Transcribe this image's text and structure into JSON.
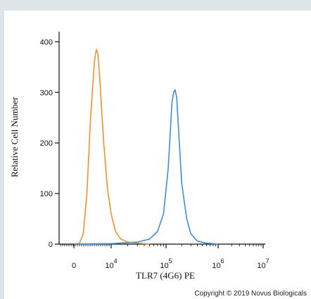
{
  "chart_data": {
    "type": "line",
    "title": "",
    "xlabel": "TLR7 (4G6) PE",
    "ylabel": "Relative Cell Number",
    "x_scale": "biexponential",
    "ylim": [
      0,
      420
    ],
    "x_ticks": [
      {
        "base": "0",
        "exp": ""
      },
      {
        "base": "10",
        "exp": "4"
      },
      {
        "base": "10",
        "exp": "5"
      },
      {
        "base": "10",
        "exp": "6"
      },
      {
        "base": "10",
        "exp": "7"
      }
    ],
    "y_ticks": [
      "0",
      "100",
      "200",
      "300",
      "400"
    ],
    "series": [
      {
        "color": "#f0922b",
        "x": [
          0,
          1500,
          2500,
          3500,
          4500,
          5500,
          6000,
          6500,
          7000,
          8000,
          9000,
          10000,
          12000,
          15000,
          20000,
          30000,
          50000
        ],
        "values": [
          0,
          2,
          20,
          100,
          250,
          360,
          385,
          375,
          320,
          200,
          110,
          60,
          25,
          10,
          4,
          2,
          0
        ]
      },
      {
        "color": "#3b8fd8",
        "x": [
          0,
          10000,
          30000,
          50000,
          70000,
          90000,
          110000,
          130000,
          140000,
          150000,
          160000,
          180000,
          200000,
          250000,
          300000,
          400000,
          600000,
          1000000
        ],
        "values": [
          0,
          1,
          4,
          10,
          25,
          60,
          150,
          280,
          300,
          305,
          290,
          200,
          120,
          50,
          20,
          6,
          2,
          0
        ]
      }
    ]
  },
  "copyright": "Copyright © 2019 Novus Biologicals",
  "colors": {
    "axis": "#111111",
    "page_bg": "#dfe3ea",
    "panel_bg": "#ffffff"
  }
}
